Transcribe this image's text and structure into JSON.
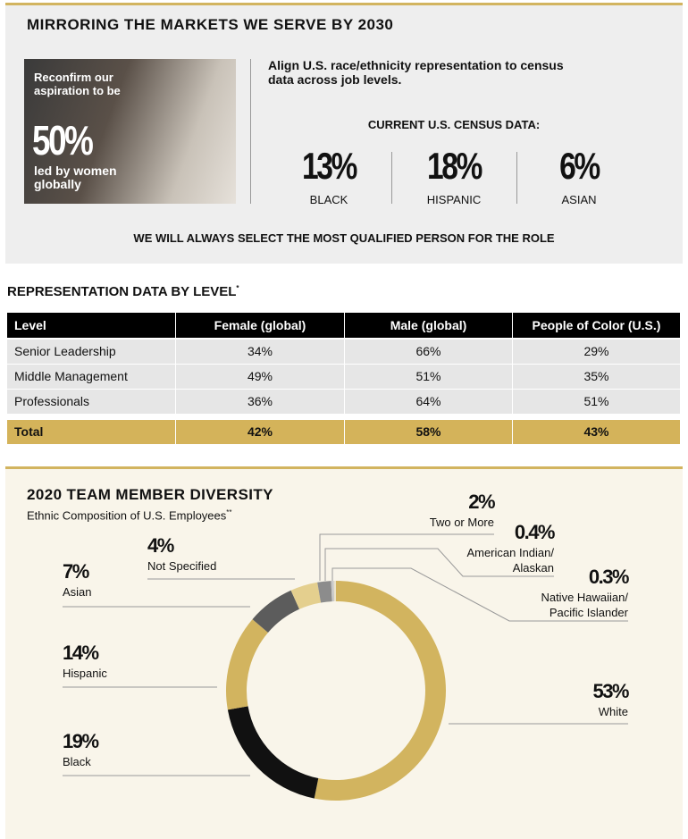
{
  "header": {
    "title": "MIRRORING THE MARKETS WE SERVE BY 2030"
  },
  "aspiration": {
    "lead": "Reconfirm our aspiration to be",
    "value": "50%",
    "tail": "led by women globally"
  },
  "census": {
    "intro": "Align U.S. race/ethnicity representation to census data across job levels.",
    "heading": "CURRENT U.S. CENSUS DATA:",
    "items": [
      {
        "value": "13%",
        "label": "BLACK"
      },
      {
        "value": "18%",
        "label": "HISPANIC"
      },
      {
        "value": "6%",
        "label": "ASIAN"
      }
    ]
  },
  "note": "WE WILL ALWAYS SELECT THE MOST QUALIFIED PERSON FOR THE ROLE",
  "table": {
    "title": "REPRESENTATION DATA BY LEVEL",
    "footnote_mark": "*",
    "columns": [
      "Level",
      "Female (global)",
      "Male (global)",
      "People of Color (U.S.)"
    ],
    "rows": [
      [
        "Senior Leadership",
        "34%",
        "66%",
        "29%"
      ],
      [
        "Middle Management",
        "49%",
        "51%",
        "35%"
      ],
      [
        "Professionals",
        "36%",
        "64%",
        "51%"
      ]
    ],
    "total": [
      "Total",
      "42%",
      "58%",
      "43%"
    ]
  },
  "chart_data": {
    "type": "pie",
    "title": "2020 TEAM MEMBER DIVERSITY",
    "subtitle": "Ethnic Composition of U.S. Employees",
    "footnote_mark": "**",
    "categories": [
      "White",
      "Black",
      "Hispanic",
      "Asian",
      "Not Specified",
      "Two or More",
      "American Indian/ Alaskan",
      "Native Hawaiian/ Pacific Islander"
    ],
    "values": [
      53,
      19,
      14,
      7,
      4,
      2,
      0.4,
      0.3
    ],
    "value_labels": [
      "53%",
      "19%",
      "14%",
      "7%",
      "4%",
      "2%",
      "0.4%",
      "0.3%"
    ],
    "colors": [
      "#d2b45f",
      "#111111",
      "#d2b45f",
      "#5c5c5c",
      "#e4cf8e",
      "#8c8c8c",
      "#c9c9c9",
      "#ebe3cb"
    ]
  }
}
